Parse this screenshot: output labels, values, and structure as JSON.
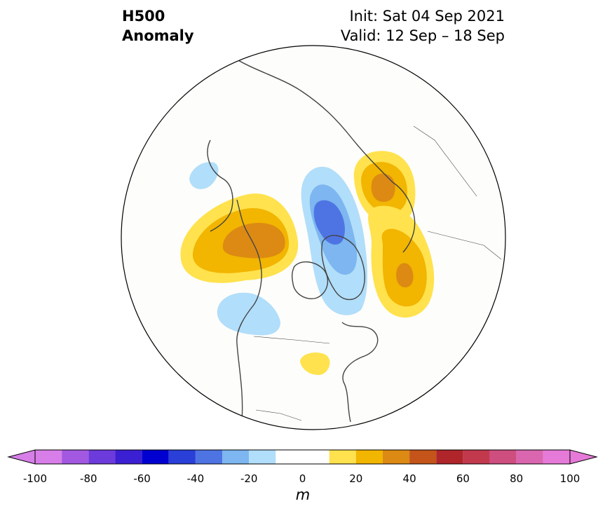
{
  "header": {
    "variable": "H500",
    "field": "Anomaly",
    "init": "Init: Sat 04 Sep 2021",
    "valid": "Valid: 12 Sep – 18 Sep"
  },
  "map": {
    "projection": "north-polar-stereographic",
    "region": "Northern Hemisphere (North America, Arctic, North Atlantic)",
    "anomaly_features": [
      {
        "location": "NE Pacific / Gulf of Alaska",
        "sign": "positive",
        "peak_m": 40
      },
      {
        "location": "Siberian Arctic / Laptev Sea",
        "sign": "positive",
        "peak_m": 40
      },
      {
        "location": "Western Europe / North Atlantic",
        "sign": "positive",
        "peak_m": 40
      },
      {
        "location": "Great Lakes",
        "sign": "positive",
        "peak_m": 20
      },
      {
        "location": "Beaufort Sea / Arctic Ocean",
        "sign": "negative",
        "peak_m": -40
      },
      {
        "location": "Pacific Northwest / Canada",
        "sign": "negative",
        "peak_m": -20
      },
      {
        "location": "Bering Sea",
        "sign": "negative",
        "peak_m": -20
      }
    ]
  },
  "colorbar": {
    "unit": "m",
    "ticks": [
      "-100",
      "-80",
      "-60",
      "-40",
      "-20",
      "0",
      "20",
      "40",
      "60",
      "80",
      "100"
    ],
    "levels": [
      -100,
      -90,
      -80,
      -70,
      -60,
      -50,
      -40,
      -30,
      -20,
      -10,
      10,
      20,
      30,
      40,
      50,
      60,
      70,
      80,
      90,
      100
    ],
    "colors": [
      "#d77ee8",
      "#a258e0",
      "#6d3adc",
      "#3b1fd2",
      "#0000d0",
      "#2a3ed8",
      "#4e74e4",
      "#7db6f0",
      "#b1defa",
      "#ffffff",
      "#ffe24d",
      "#f2b500",
      "#dc8a14",
      "#c45419",
      "#b0252a",
      "#c2394e",
      "#ce4e80",
      "#da66b0",
      "#e67ad8"
    ],
    "extend_low": "#d77ee8",
    "extend_high": "#e67ad8"
  }
}
